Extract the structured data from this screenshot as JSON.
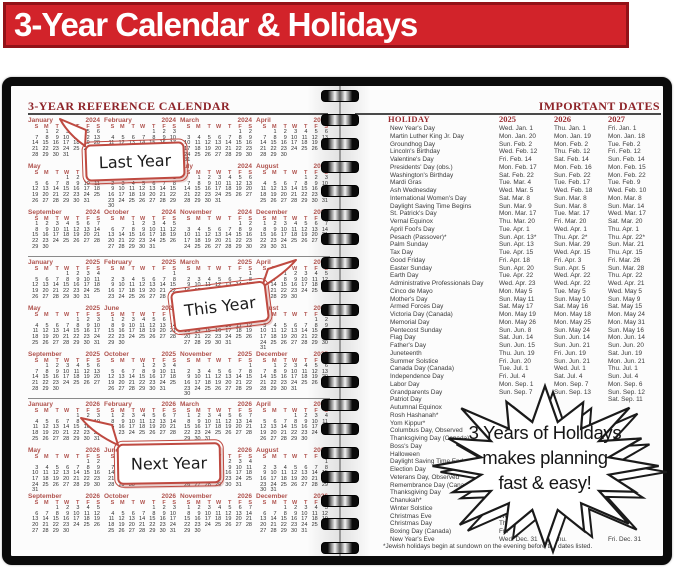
{
  "banner": {
    "title": "3-Year Calendar & Holidays",
    "bg_color": "#d2232a",
    "border_color": "#921218",
    "text_color": "#ffffff"
  },
  "colors": {
    "accent_dark_red": "#8e2429",
    "month_red": "#b0534e",
    "callout_border": "#bf4a41",
    "table_header_red": "#9b2c31",
    "text_dark": "#2f2f2f"
  },
  "left_page": {
    "title": "3-YEAR REFERENCE CALENDAR",
    "day_header": [
      "S",
      "M",
      "T",
      "W",
      "T",
      "F",
      "S"
    ],
    "callouts": [
      {
        "label": "Last Year"
      },
      {
        "label": "This Year"
      },
      {
        "label": "Next Year"
      }
    ],
    "years": [
      {
        "year": "2024",
        "months": [
          [
            "January",
            1,
            31
          ],
          [
            "February",
            4,
            29
          ],
          [
            "March",
            5,
            31
          ],
          [
            "April",
            1,
            30
          ],
          [
            "May",
            3,
            31
          ],
          [
            "June",
            6,
            30
          ],
          [
            "July",
            1,
            31
          ],
          [
            "August",
            4,
            31
          ],
          [
            "September",
            0,
            30
          ],
          [
            "October",
            2,
            31
          ],
          [
            "November",
            5,
            30
          ],
          [
            "December",
            0,
            31
          ]
        ]
      },
      {
        "year": "2025",
        "months": [
          [
            "January",
            3,
            31
          ],
          [
            "February",
            6,
            28
          ],
          [
            "March",
            6,
            31
          ],
          [
            "April",
            2,
            30
          ],
          [
            "May",
            4,
            31
          ],
          [
            "June",
            0,
            30
          ],
          [
            "July",
            2,
            31
          ],
          [
            "August",
            5,
            31
          ],
          [
            "September",
            1,
            30
          ],
          [
            "October",
            3,
            31
          ],
          [
            "November",
            6,
            30
          ],
          [
            "December",
            1,
            31
          ]
        ]
      },
      {
        "year": "2026",
        "months": [
          [
            "January",
            4,
            31
          ],
          [
            "February",
            0,
            28
          ],
          [
            "March",
            0,
            31
          ],
          [
            "April",
            3,
            30
          ],
          [
            "May",
            5,
            31
          ],
          [
            "June",
            1,
            30
          ],
          [
            "July",
            3,
            31
          ],
          [
            "August",
            6,
            31
          ],
          [
            "September",
            2,
            30
          ],
          [
            "October",
            4,
            31
          ],
          [
            "November",
            0,
            30
          ],
          [
            "December",
            2,
            31
          ]
        ]
      }
    ]
  },
  "right_page": {
    "title": "IMPORTANT DATES",
    "columns": [
      "HOLIDAY",
      "2025",
      "2026",
      "2027"
    ],
    "rows": [
      [
        "New Year's Day",
        "Wed. Jan. 1",
        "Thu. Jan. 1",
        "Fri. Jan. 1"
      ],
      [
        "Martin Luther King Jr. Day",
        "Mon. Jan. 20",
        "Mon. Jan. 19",
        "Mon. Jan. 18"
      ],
      [
        "Groundhog Day",
        "Sun. Feb. 2",
        "Mon. Feb. 2",
        "Tue. Feb. 2"
      ],
      [
        "Lincoln's Birthday",
        "Wed. Feb. 12",
        "Thu. Feb. 12",
        "Fri. Feb. 12"
      ],
      [
        "Valentine's Day",
        "Fri. Feb. 14",
        "Sat. Feb. 14",
        "Sun. Feb. 14"
      ],
      [
        "Presidents' Day (obs.)",
        "Mon. Feb. 17",
        "Mon. Feb. 16",
        "Mon. Feb. 15"
      ],
      [
        "Washington's Birthday",
        "Sat. Feb. 22",
        "Sun. Feb. 22",
        "Mon. Feb. 22"
      ],
      [
        "Mardi Gras",
        "Tue. Mar. 4",
        "Tue. Feb. 17",
        "Tue. Feb. 9"
      ],
      [
        "Ash Wednesday",
        "Wed. Mar. 5",
        "Wed. Feb. 18",
        "Wed. Feb. 10"
      ],
      [
        "International Women's Day",
        "Sat. Mar. 8",
        "Sun. Mar. 8",
        "Mon. Mar. 8"
      ],
      [
        "Daylight Saving Time Begins",
        "Sun. Mar. 9",
        "Sun. Mar. 8",
        "Sun. Mar. 14"
      ],
      [
        "St. Patrick's Day",
        "Mon. Mar. 17",
        "Tue. Mar. 17",
        "Wed. Mar. 17"
      ],
      [
        "Vernal Equinox",
        "Thu. Mar. 20",
        "Fri. Mar. 20",
        "Sat. Mar. 20"
      ],
      [
        "April Fool's Day",
        "Tue. Apr. 1",
        "Wed. Apr. 1",
        "Thu. Apr. 1"
      ],
      [
        "Pesach (Passover)*",
        "Sun. Apr. 13*",
        "Thu. Apr. 2*",
        "Thu. Apr. 22*"
      ],
      [
        "Palm Sunday",
        "Sun. Apr. 13",
        "Sun. Mar. 29",
        "Sun. Mar. 21"
      ],
      [
        "Tax Day",
        "Tue. Apr. 15",
        "Wed. Apr. 15",
        "Thu. Apr. 15"
      ],
      [
        "Good Friday",
        "Fri. Apr. 18",
        "Fri. Apr. 3",
        "Fri. Mar. 26"
      ],
      [
        "Easter Sunday",
        "Sun. Apr. 20",
        "Sun. Apr. 5",
        "Sun. Mar. 28"
      ],
      [
        "Earth Day",
        "Tue. Apr. 22",
        "Wed. Apr. 22",
        "Thu. Apr. 22"
      ],
      [
        "Administrative Professionals Day",
        "Wed. Apr. 23",
        "Wed. Apr. 22",
        "Wed. Apr. 21"
      ],
      [
        "Cinco de Mayo",
        "Mon. May 5",
        "Tue. May 5",
        "Wed. May 5"
      ],
      [
        "Mother's Day",
        "Sun. May 11",
        "Sun. May 10",
        "Sun. May 9"
      ],
      [
        "Armed Forces Day",
        "Sat. May 17",
        "Sat. May 16",
        "Sat. May 15"
      ],
      [
        "Victoria Day (Canada)",
        "Mon. May 19",
        "Mon. May 18",
        "Mon. May 24"
      ],
      [
        "Memorial Day",
        "Mon. May 26",
        "Mon. May 25",
        "Mon. May 31"
      ],
      [
        "Pentecost Sunday",
        "Sun. Jun. 8",
        "Sun. May 24",
        "Sun. May 16"
      ],
      [
        "Flag Day",
        "Sat. Jun. 14",
        "Sun. Jun. 14",
        "Mon. Jun. 14"
      ],
      [
        "Father's Day",
        "Sun. Jun. 15",
        "Sun. Jun. 21",
        "Sun. Jun. 20"
      ],
      [
        "Juneteenth",
        "Thu. Jun. 19",
        "Fri. Jun. 19",
        "Sat. Jun. 19"
      ],
      [
        "Summer Solstice",
        "Fri. Jun. 20",
        "Sun. Jun. 21",
        "Mon. Jun. 21"
      ],
      [
        "Canada Day (Canada)",
        "Tue. Jul. 1",
        "Wed. Jul. 1",
        "Thu. Jul. 1"
      ],
      [
        "Independence Day",
        "Fri. Jul. 4",
        "Sat. Jul. 4",
        "Sun. Jul. 4"
      ],
      [
        "Labor Day",
        "Mon. Sep. 1",
        "Mon. Sep. 7",
        "Mon. Sep. 6"
      ],
      [
        "Grandparents Day",
        "Sun. Sep. 7",
        "Sun. Sep. 13",
        "Sun. Sep. 12"
      ],
      [
        "Patriot Day",
        "",
        "",
        "Sat. Sep. 11"
      ],
      [
        "Autumnal Equinox",
        "",
        "",
        ""
      ],
      [
        "Rosh Hashanah*",
        "",
        "",
        ""
      ],
      [
        "Yom Kippur*",
        "",
        "",
        ""
      ],
      [
        "Columbus Day, Observed",
        "",
        "",
        ""
      ],
      [
        "Thanksgiving Day (Canada)",
        "",
        "",
        ""
      ],
      [
        "Boss's Day",
        "",
        "",
        ""
      ],
      [
        "Halloween",
        "",
        "",
        ""
      ],
      [
        "Daylight Saving Time Ends",
        "",
        "",
        ""
      ],
      [
        "Election Day",
        "",
        "",
        ""
      ],
      [
        "Veterans Day, Observed",
        "",
        "",
        ""
      ],
      [
        "Remembrance Day (Canada)",
        "",
        "",
        ""
      ],
      [
        "Thanksgiving Day",
        "",
        "",
        ""
      ],
      [
        "Chanukah*",
        "",
        "",
        ""
      ],
      [
        "Winter Solstice",
        "",
        "",
        ""
      ],
      [
        "Christmas Eve",
        "Wed.",
        "",
        ""
      ],
      [
        "Christmas Day",
        "Thu.",
        "",
        ""
      ],
      [
        "Boxing Day (Canada)",
        "Fri.",
        "",
        ""
      ],
      [
        "New Year's Eve",
        "Wed. Dec. 31",
        "Thu.",
        "Fri. Dec. 31"
      ]
    ],
    "footnote": "*Jewish holidays begin at sundown on the evening before the dates listed."
  },
  "starburst": {
    "lines": [
      "3 Years of Holidays",
      "makes planning",
      "fast & easy!"
    ]
  }
}
